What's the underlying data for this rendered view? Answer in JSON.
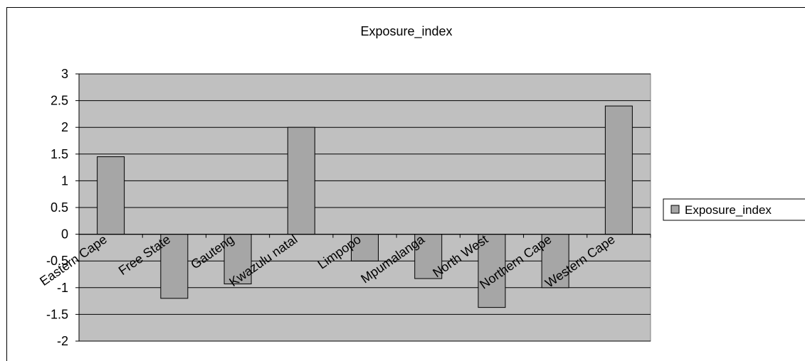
{
  "chart_data": {
    "type": "bar",
    "title": "Exposure_index",
    "xlabel": "",
    "ylabel": "",
    "categories": [
      "Eastern Cape",
      "Free State",
      "Gauteng",
      "Kwazulu natal",
      "Limpopo",
      "Mpumalanga",
      "North West",
      "Northern Cape",
      "Western Cape"
    ],
    "series": [
      {
        "name": "Exposure_index",
        "values": [
          1.45,
          -1.2,
          -0.93,
          2.0,
          -0.5,
          -0.83,
          -1.37,
          -1.0,
          2.4
        ]
      }
    ],
    "ylim": [
      -2,
      3
    ],
    "yticks": [
      "3",
      "2.5",
      "2",
      "1.5",
      "1",
      "0.5",
      "0",
      "-0.5",
      "-1",
      "-1.5",
      "-2"
    ],
    "grid": true,
    "legend_position": "right",
    "colors": {
      "plot_background": "#c0c0c0",
      "bar_fill": "#a6a6a6",
      "bar_stroke": "#000000",
      "gridline": "#000000"
    }
  }
}
